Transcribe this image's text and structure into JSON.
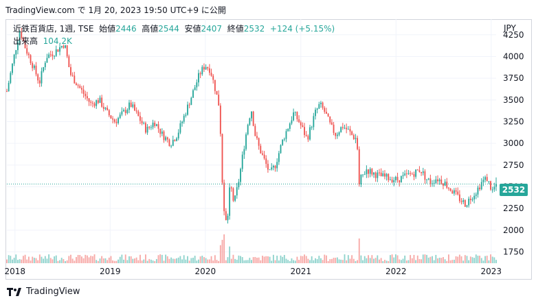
{
  "header": {
    "text": "TradingView.com で 1月 20, 2023 19:50 UTC+9 に公開"
  },
  "legend": {
    "symbol": "近鉄百貨店, 1週, TSE",
    "open_label": "始値",
    "open": "2446",
    "high_label": "高値",
    "high": "2544",
    "low_label": "安値",
    "low": "2407",
    "close_label": "終値",
    "close": "2532",
    "change": "+124 (+5.15%)",
    "volume_label": "出来高",
    "volume": "104.2K"
  },
  "axis": {
    "currency": "JPY",
    "last_price": "2532"
  },
  "footer": {
    "brand": "TradingView"
  },
  "colors": {
    "up": "#26a69a",
    "down": "#ef5350",
    "up_vol": "#8fd3cd",
    "down_vol": "#f7a9a7",
    "grid": "#f0f3fa",
    "price_line": "#26a69a"
  },
  "chart_data": {
    "type": "candlestick",
    "title": "近鉄百貨店, 1週, TSE",
    "y_ticks": [
      1750,
      2000,
      2250,
      2500,
      2750,
      3000,
      3250,
      3500,
      3750,
      4000,
      4250
    ],
    "x_ticks": [
      "2018",
      "2019",
      "2020",
      "2021",
      "2022",
      "2023"
    ],
    "x_tick_dates": [
      "2018-01-01",
      "2019-01-01",
      "2020-01-01",
      "2021-01-01",
      "2022-01-01",
      "2023-01-01"
    ],
    "x_range": [
      "2017-12-01",
      "2023-01-20"
    ],
    "ylim": [
      1620,
      4430
    ],
    "last_close": 2532,
    "grid": true,
    "series_close": [
      [
        "2017-12-01",
        3600
      ],
      [
        "2018-01-01",
        4050
      ],
      [
        "2018-01-20",
        4300
      ],
      [
        "2018-02-10",
        4100
      ],
      [
        "2018-03-10",
        3900
      ],
      [
        "2018-04-05",
        3700
      ],
      [
        "2018-05-01",
        4000
      ],
      [
        "2018-06-01",
        4050
      ],
      [
        "2018-07-10",
        4150
      ],
      [
        "2018-08-01",
        3800
      ],
      [
        "2018-09-15",
        3600
      ],
      [
        "2018-10-20",
        3450
      ],
      [
        "2018-11-20",
        3500
      ],
      [
        "2018-12-20",
        3350
      ],
      [
        "2019-01-20",
        3250
      ],
      [
        "2019-02-20",
        3350
      ],
      [
        "2019-03-20",
        3450
      ],
      [
        "2019-04-20",
        3300
      ],
      [
        "2019-05-20",
        3150
      ],
      [
        "2019-06-20",
        3250
      ],
      [
        "2019-07-20",
        3100
      ],
      [
        "2019-08-20",
        3000
      ],
      [
        "2019-09-15",
        3100
      ],
      [
        "2019-10-10",
        3300
      ],
      [
        "2019-11-10",
        3550
      ],
      [
        "2019-12-10",
        3800
      ],
      [
        "2019-12-31",
        3900
      ],
      [
        "2020-01-20",
        3850
      ],
      [
        "2020-02-10",
        3600
      ],
      [
        "2020-02-25",
        3400
      ],
      [
        "2020-03-05",
        2600
      ],
      [
        "2020-03-15",
        2100
      ],
      [
        "2020-03-25",
        2100
      ],
      [
        "2020-04-05",
        2550
      ],
      [
        "2020-04-20",
        2300
      ],
      [
        "2020-05-10",
        2600
      ],
      [
        "2020-05-25",
        2900
      ],
      [
        "2020-06-10",
        3200
      ],
      [
        "2020-06-25",
        3400
      ],
      [
        "2020-07-10",
        3100
      ],
      [
        "2020-07-25",
        2950
      ],
      [
        "2020-08-15",
        2800
      ],
      [
        "2020-09-05",
        2650
      ],
      [
        "2020-09-25",
        2750
      ],
      [
        "2020-10-10",
        2900
      ],
      [
        "2020-10-25",
        3050
      ],
      [
        "2020-11-15",
        3200
      ],
      [
        "2020-12-05",
        3350
      ],
      [
        "2020-12-25",
        3250
      ],
      [
        "2021-01-10",
        3150
      ],
      [
        "2021-01-25",
        3050
      ],
      [
        "2021-02-10",
        3200
      ],
      [
        "2021-02-25",
        3350
      ],
      [
        "2021-03-15",
        3450
      ],
      [
        "2021-04-05",
        3350
      ],
      [
        "2021-04-25",
        3200
      ],
      [
        "2021-05-15",
        3100
      ],
      [
        "2021-06-10",
        3200
      ],
      [
        "2021-07-01",
        3150
      ],
      [
        "2021-07-20",
        3080
      ],
      [
        "2021-08-05",
        3050
      ],
      [
        "2021-08-10",
        2500
      ],
      [
        "2021-08-20",
        2600
      ],
      [
        "2021-09-10",
        2700
      ],
      [
        "2021-10-10",
        2650
      ],
      [
        "2021-11-05",
        2620
      ],
      [
        "2021-12-05",
        2600
      ],
      [
        "2022-01-05",
        2580
      ],
      [
        "2022-02-05",
        2620
      ],
      [
        "2022-03-05",
        2650
      ],
      [
        "2022-04-05",
        2700
      ],
      [
        "2022-04-25",
        2600
      ],
      [
        "2022-05-15",
        2550
      ],
      [
        "2022-06-05",
        2600
      ],
      [
        "2022-07-05",
        2550
      ],
      [
        "2022-08-05",
        2450
      ],
      [
        "2022-09-05",
        2350
      ],
      [
        "2022-09-25",
        2300
      ],
      [
        "2022-10-15",
        2380
      ],
      [
        "2022-11-05",
        2450
      ],
      [
        "2022-11-25",
        2550
      ],
      [
        "2022-12-15",
        2600
      ],
      [
        "2023-01-05",
        2450
      ],
      [
        "2023-01-20",
        2532
      ]
    ]
  }
}
